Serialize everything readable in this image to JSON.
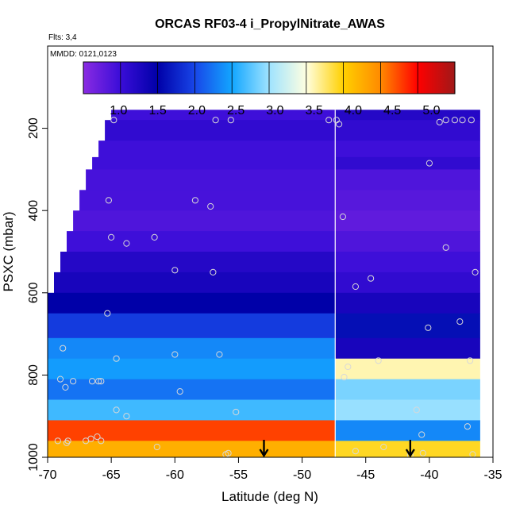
{
  "chart_data": {
    "type": "heatmap",
    "title": "ORCAS RF03-4 i_PropylNitrate_AWAS",
    "note_flights": "Flts: 3,4",
    "note_mmdd": "MMDD: 0121,0123",
    "xlabel": "Latitude (deg N)",
    "ylabel": "PSXC (mbar)",
    "xlim": [
      -70,
      -35
    ],
    "ylim": [
      1000,
      0
    ],
    "x_ticks": [
      -70,
      -65,
      -60,
      -55,
      -50,
      -45,
      -40,
      -35
    ],
    "y_ticks": [
      200,
      400,
      600,
      800,
      1000
    ],
    "colorbar": {
      "range": [
        0.55,
        5.3
      ],
      "ticks": [
        1.0,
        1.5,
        2.0,
        2.5,
        3.0,
        3.5,
        4.0,
        4.5,
        5.0
      ],
      "colors": [
        "#8a2be2",
        "#3a0dd8",
        "#0000a8",
        "#1846e8",
        "#12a6ff",
        "#9fe3ff",
        "#ffffe0",
        "#ffd000",
        "#ff8a00",
        "#ff0000",
        "#a01818"
      ]
    },
    "divider_lat": -47.4,
    "bands": [
      {
        "p": 180,
        "segments": [
          [
            -65.0,
            -47.4,
            1.0
          ],
          [
            -47.4,
            -36.0,
            1.2
          ]
        ]
      },
      {
        "p": 230,
        "segments": [
          [
            -65.5,
            -47.4,
            1.1
          ],
          [
            -47.4,
            -36.0,
            1.1
          ]
        ]
      },
      {
        "p": 270,
        "segments": [
          [
            -66.0,
            -47.4,
            1.0
          ],
          [
            -47.4,
            -36.0,
            1.0
          ]
        ]
      },
      {
        "p": 300,
        "segments": [
          [
            -66.5,
            -47.4,
            1.0
          ],
          [
            -47.4,
            -36.0,
            1.1
          ]
        ]
      },
      {
        "p": 350,
        "segments": [
          [
            -67.0,
            -47.4,
            0.95
          ],
          [
            -47.4,
            -36.0,
            0.9
          ]
        ]
      },
      {
        "p": 400,
        "segments": [
          [
            -67.5,
            -47.4,
            0.95
          ],
          [
            -47.4,
            -36.0,
            0.85
          ]
        ]
      },
      {
        "p": 450,
        "segments": [
          [
            -68.0,
            -47.4,
            0.9
          ],
          [
            -47.4,
            -36.0,
            0.8
          ]
        ]
      },
      {
        "p": 500,
        "segments": [
          [
            -68.5,
            -47.4,
            1.0
          ],
          [
            -47.4,
            -36.0,
            0.9
          ]
        ]
      },
      {
        "p": 550,
        "segments": [
          [
            -69.0,
            -47.4,
            1.2
          ],
          [
            -47.4,
            -36.0,
            1.0
          ]
        ]
      },
      {
        "p": 600,
        "segments": [
          [
            -69.5,
            -47.4,
            1.3
          ],
          [
            -47.4,
            -36.0,
            1.1
          ]
        ]
      },
      {
        "p": 650,
        "segments": [
          [
            -70.0,
            -47.4,
            1.5
          ],
          [
            -47.4,
            -36.0,
            1.3
          ]
        ]
      },
      {
        "p": 710,
        "segments": [
          [
            -70.5,
            -47.4,
            1.9
          ],
          [
            -47.4,
            -36.0,
            1.6
          ]
        ]
      },
      {
        "p": 760,
        "segments": [
          [
            -71.0,
            -47.4,
            2.3
          ],
          [
            -47.4,
            -36.0,
            1.3
          ]
        ]
      },
      {
        "p": 810,
        "segments": [
          [
            -71.0,
            -47.4,
            2.4
          ],
          [
            -47.4,
            -36.0,
            3.5
          ]
        ]
      },
      {
        "p": 860,
        "segments": [
          [
            -71.0,
            -47.4,
            2.2
          ],
          [
            -47.4,
            -36.0,
            2.8
          ]
        ]
      },
      {
        "p": 910,
        "segments": [
          [
            -71.0,
            -47.4,
            2.6
          ],
          [
            -47.4,
            -36.0,
            2.9
          ]
        ]
      },
      {
        "p": 960,
        "segments": [
          [
            -71.0,
            -47.4,
            4.6
          ],
          [
            -47.4,
            -36.0,
            2.3
          ]
        ]
      },
      {
        "p": 1000,
        "segments": [
          [
            -71.0,
            -47.4,
            4.1
          ],
          [
            -47.4,
            -36.0,
            3.8
          ]
        ]
      }
    ],
    "sample_points": [
      [
        -64.8,
        180
      ],
      [
        -56.8,
        180
      ],
      [
        -55.6,
        180
      ],
      [
        -47.9,
        180
      ],
      [
        -47.3,
        180
      ],
      [
        -47.1,
        190
      ],
      [
        -39.2,
        185
      ],
      [
        -38.7,
        180
      ],
      [
        -38.0,
        180
      ],
      [
        -37.4,
        180
      ],
      [
        -36.7,
        180
      ],
      [
        -40.0,
        285
      ],
      [
        -65.2,
        375
      ],
      [
        -58.4,
        375
      ],
      [
        -57.2,
        390
      ],
      [
        -46.8,
        415
      ],
      [
        -65.0,
        465
      ],
      [
        -61.6,
        465
      ],
      [
        -63.8,
        480
      ],
      [
        -38.7,
        490
      ],
      [
        -60.0,
        545
      ],
      [
        -57.0,
        550
      ],
      [
        -44.6,
        565
      ],
      [
        -45.8,
        585
      ],
      [
        -36.4,
        550
      ],
      [
        -65.3,
        650
      ],
      [
        -40.1,
        685
      ],
      [
        -37.6,
        670
      ],
      [
        -68.8,
        735
      ],
      [
        -64.6,
        760
      ],
      [
        -60.0,
        750
      ],
      [
        -56.5,
        750
      ],
      [
        -44.0,
        765
      ],
      [
        -46.4,
        780
      ],
      [
        -36.8,
        765
      ],
      [
        -69.0,
        810
      ],
      [
        -68.0,
        815
      ],
      [
        -66.5,
        815
      ],
      [
        -66.0,
        815
      ],
      [
        -65.8,
        815
      ],
      [
        -59.6,
        840
      ],
      [
        -46.7,
        805
      ],
      [
        -68.6,
        830
      ],
      [
        -64.6,
        885
      ],
      [
        -63.8,
        900
      ],
      [
        -55.2,
        890
      ],
      [
        -41.0,
        885
      ],
      [
        -40.6,
        945
      ],
      [
        -37.0,
        925
      ],
      [
        -69.2,
        960
      ],
      [
        -68.5,
        965
      ],
      [
        -68.4,
        960
      ],
      [
        -67.0,
        960
      ],
      [
        -66.6,
        955
      ],
      [
        -66.1,
        950
      ],
      [
        -65.8,
        960
      ],
      [
        -61.4,
        975
      ],
      [
        -55.8,
        990
      ],
      [
        -56.0,
        993
      ],
      [
        -45.8,
        985
      ],
      [
        -43.6,
        975
      ],
      [
        -41.5,
        995
      ],
      [
        -40.5,
        990
      ],
      [
        -36.6,
        993
      ]
    ],
    "arrows_lat": [
      -53.0,
      -41.5
    ]
  }
}
